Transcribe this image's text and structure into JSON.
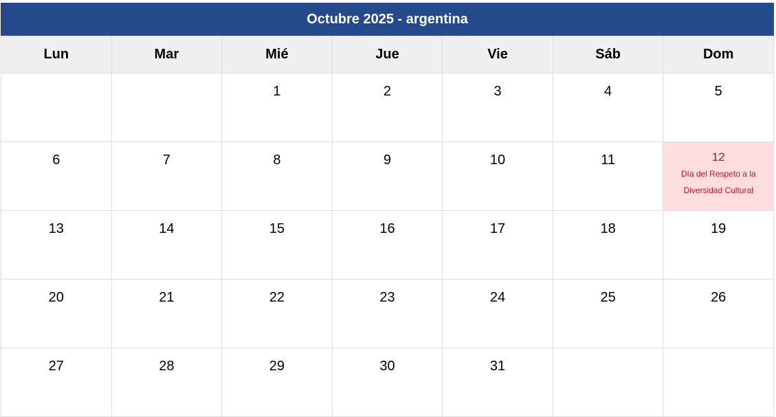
{
  "title": "Octubre 2025 - argentina",
  "weekdays": [
    "Lun",
    "Mar",
    "Mié",
    "Jue",
    "Vie",
    "Sáb",
    "Dom"
  ],
  "weeks": [
    [
      null,
      null,
      "1",
      "2",
      "3",
      "4",
      "5"
    ],
    [
      "6",
      "7",
      "8",
      "9",
      "10",
      "11",
      "12"
    ],
    [
      "13",
      "14",
      "15",
      "16",
      "17",
      "18",
      "19"
    ],
    [
      "20",
      "21",
      "22",
      "23",
      "24",
      "25",
      "26"
    ],
    [
      "27",
      "28",
      "29",
      "30",
      "31",
      null,
      null
    ]
  ],
  "holidays": {
    "12": "Día del Respeto a la Diversidad Cultural"
  },
  "colors": {
    "header": "#244a8c",
    "holiday_bg": "#ffdde0",
    "holiday_text": "#c4141c"
  }
}
